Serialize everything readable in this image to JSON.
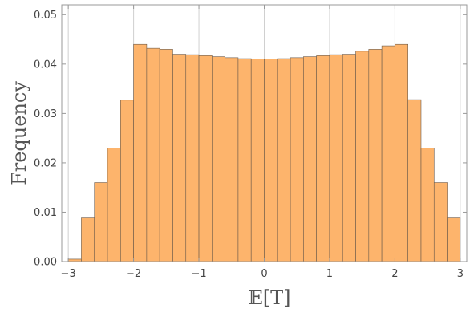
{
  "chart_data": {
    "type": "bar",
    "xlabel": "𝔼[T]",
    "ylabel": "Frequency",
    "xlim": [
      -3.1,
      3.1
    ],
    "ylim": [
      0,
      0.052
    ],
    "xticks": [
      -3,
      -2,
      -1,
      0,
      1,
      2,
      3
    ],
    "xtick_labels": [
      "−3",
      "−2",
      "−1",
      "0",
      "1",
      "2",
      "3"
    ],
    "yticks": [
      0,
      0.01,
      0.02,
      0.03,
      0.04,
      0.05
    ],
    "ytick_labels": [
      "0.00",
      "0.01",
      "0.02",
      "0.03",
      "0.04",
      "0.05"
    ],
    "grid": "vertical",
    "bin_width": 0.2,
    "bin_edges": [
      -3.0,
      -2.8,
      -2.6,
      -2.4,
      -2.2,
      -2.0,
      -1.8,
      -1.6,
      -1.4,
      -1.2,
      -1.0,
      -0.8,
      -0.6,
      -0.4,
      -0.2,
      0.0,
      0.2,
      0.4,
      0.6,
      0.8,
      1.0,
      1.2,
      1.4,
      1.6,
      1.8,
      2.0,
      2.2,
      2.4,
      2.6,
      2.8,
      3.0
    ],
    "values": [
      0.0005,
      0.009,
      0.016,
      0.023,
      0.0327,
      0.044,
      0.0432,
      0.043,
      0.042,
      0.0419,
      0.0417,
      0.0415,
      0.0413,
      0.0411,
      0.041,
      0.041,
      0.0411,
      0.0413,
      0.0415,
      0.0417,
      0.0419,
      0.042,
      0.0426,
      0.043,
      0.0437,
      0.044,
      0.0328,
      0.023,
      0.016,
      0.009,
      0.0005
    ],
    "colors": {
      "bar_fill": "#fdb46c",
      "bar_stroke": "#6b5a4a",
      "grid": "#d0d0d0",
      "axis": "#999999"
    }
  }
}
